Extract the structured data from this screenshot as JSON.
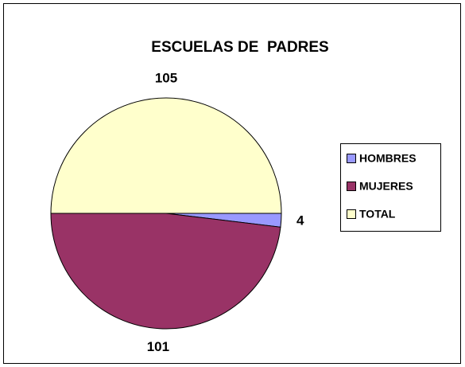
{
  "chart_data": {
    "type": "pie",
    "title": "ESCUELAS DE  PADRES",
    "categories": [
      "HOMBRES",
      "MUJERES",
      "TOTAL"
    ],
    "values": [
      4,
      101,
      105
    ],
    "colors": [
      "#9999ff",
      "#993366",
      "#ffffcc"
    ],
    "legend": "right"
  }
}
